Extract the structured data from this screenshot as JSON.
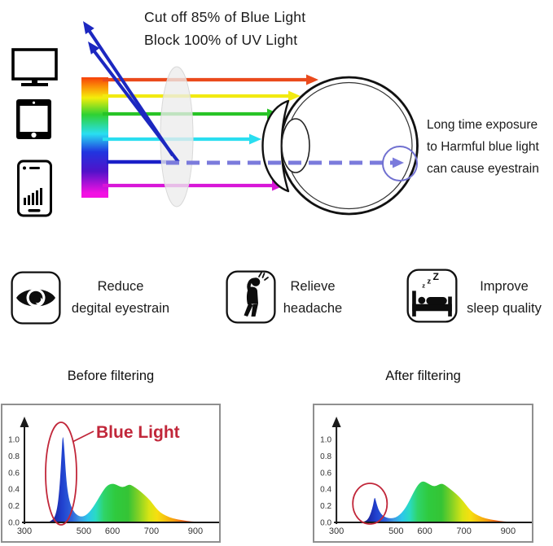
{
  "header": {
    "line1": "Cut off 85% of Blue Light",
    "line2": "Block 100% of UV Light"
  },
  "diagram": {
    "caption": [
      "Long time exposure",
      "to Harmful blue light",
      "can cause eyestrain"
    ],
    "spectrum_bar": [
      "#f64008",
      "#fb9307",
      "#f4ee0b",
      "#2fd133",
      "#29dff2",
      "#2135e0",
      "#5012c9",
      "#f211e2"
    ],
    "rays": {
      "red": "#ea4a1c",
      "yellow": "#f2ea10",
      "green": "#28c426",
      "cyan": "#2adef0",
      "blue": "#1a1fc8",
      "magenta": "#d816d8",
      "reflected_blue": "#1c27c0",
      "transmitted_dashed": "#7b7bdc"
    },
    "lens_fill": "#ececec",
    "retina_circle": "#7070d0",
    "devices": [
      "monitor",
      "tablet",
      "smartphone"
    ]
  },
  "benefits": [
    {
      "icon": "eye",
      "line1": "Reduce",
      "line2": "degital eyestrain"
    },
    {
      "icon": "headache",
      "line1": "Relieve",
      "line2": "headache"
    },
    {
      "icon": "sleep-bed",
      "line1": "Improve",
      "line2": "sleep quality",
      "zzz": [
        "z",
        "z",
        "Z"
      ]
    }
  ],
  "chart_data": [
    {
      "type": "area",
      "title": "Before filtering",
      "x_ticks": [
        300,
        500,
        600,
        700,
        900
      ],
      "y_ticks": [
        "0.0",
        "0.2",
        "0.4",
        "0.6",
        "0.8",
        "1.0"
      ],
      "ylim": [
        0,
        1.15
      ],
      "x_map": [
        [
          300,
          0
        ],
        [
          500,
          0.32
        ],
        [
          600,
          0.474
        ],
        [
          700,
          0.684
        ],
        [
          900,
          0.921
        ],
        [
          950,
          1.0
        ]
      ],
      "gradient": [
        [
          0,
          "#1b1566"
        ],
        [
          0.05,
          "#1c2cae"
        ],
        [
          0.09,
          "#2141cf"
        ],
        [
          0.15,
          "#2e62da"
        ],
        [
          0.2,
          "#3e9ae2"
        ],
        [
          0.25,
          "#2cc6ec"
        ],
        [
          0.3,
          "#2adbc2"
        ],
        [
          0.35,
          "#2fd468"
        ],
        [
          0.42,
          "#2fca3e"
        ],
        [
          0.5,
          "#35c435"
        ],
        [
          0.56,
          "#7ed026"
        ],
        [
          0.63,
          "#d8e414"
        ],
        [
          0.68,
          "#f6df10"
        ],
        [
          0.73,
          "#f6c20f"
        ],
        [
          0.78,
          "#f5a00e"
        ],
        [
          0.84,
          "#ee6414"
        ],
        [
          0.92,
          "#e63419"
        ],
        [
          1,
          "#e02315"
        ]
      ],
      "points": [
        [
          378,
          0
        ],
        [
          392,
          0.02
        ],
        [
          403,
          0.07
        ],
        [
          412,
          0.2
        ],
        [
          419,
          0.45
        ],
        [
          425,
          0.82
        ],
        [
          429,
          1.08
        ],
        [
          434,
          0.9
        ],
        [
          440,
          0.55
        ],
        [
          447,
          0.33
        ],
        [
          456,
          0.2
        ],
        [
          468,
          0.12
        ],
        [
          480,
          0.08
        ],
        [
          492,
          0.07
        ],
        [
          505,
          0.08
        ],
        [
          518,
          0.12
        ],
        [
          532,
          0.18
        ],
        [
          548,
          0.27
        ],
        [
          565,
          0.37
        ],
        [
          580,
          0.44
        ],
        [
          597,
          0.47
        ],
        [
          610,
          0.455
        ],
        [
          622,
          0.425
        ],
        [
          632,
          0.43
        ],
        [
          643,
          0.46
        ],
        [
          652,
          0.44
        ],
        [
          665,
          0.4
        ],
        [
          680,
          0.34
        ],
        [
          698,
          0.26
        ],
        [
          718,
          0.18
        ],
        [
          740,
          0.12
        ],
        [
          765,
          0.08
        ],
        [
          800,
          0.045
        ],
        [
          840,
          0.025
        ],
        [
          880,
          0.012
        ],
        [
          915,
          0.006
        ],
        [
          945,
          0.002
        ]
      ],
      "annotation": {
        "label": "Blue Light",
        "color": "#c1273a",
        "cx": 72,
        "cy": 84,
        "rx": 19,
        "ry": 63,
        "label_x": 115,
        "label_y": 40,
        "pointer": [
          86,
          45,
          112,
          32
        ]
      }
    },
    {
      "type": "area",
      "title": "After filtering",
      "x_ticks": [
        300,
        500,
        600,
        700,
        900
      ],
      "y_ticks": [
        "0.0",
        "0.2",
        "0.4",
        "0.6",
        "0.8",
        "1.0"
      ],
      "ylim": [
        0,
        1.15
      ],
      "x_map": [
        [
          300,
          0
        ],
        [
          500,
          0.32
        ],
        [
          600,
          0.474
        ],
        [
          700,
          0.684
        ],
        [
          900,
          0.921
        ],
        [
          950,
          1.0
        ]
      ],
      "gradient": [
        [
          0,
          "#1b1566"
        ],
        [
          0.05,
          "#1c2cae"
        ],
        [
          0.09,
          "#2141cf"
        ],
        [
          0.15,
          "#2e62da"
        ],
        [
          0.2,
          "#3e9ae2"
        ],
        [
          0.25,
          "#2cc6ec"
        ],
        [
          0.3,
          "#2adbc2"
        ],
        [
          0.35,
          "#2fd468"
        ],
        [
          0.42,
          "#2fca3e"
        ],
        [
          0.5,
          "#35c435"
        ],
        [
          0.56,
          "#7ed026"
        ],
        [
          0.63,
          "#d8e414"
        ],
        [
          0.68,
          "#f6df10"
        ],
        [
          0.73,
          "#f6c20f"
        ],
        [
          0.78,
          "#f5a00e"
        ],
        [
          0.84,
          "#ee6414"
        ],
        [
          0.92,
          "#e63419"
        ],
        [
          1,
          "#e02315"
        ]
      ],
      "points": [
        [
          385,
          0
        ],
        [
          398,
          0.015
        ],
        [
          408,
          0.05
        ],
        [
          416,
          0.12
        ],
        [
          423,
          0.21
        ],
        [
          428,
          0.315
        ],
        [
          433,
          0.25
        ],
        [
          440,
          0.16
        ],
        [
          450,
          0.1
        ],
        [
          462,
          0.065
        ],
        [
          476,
          0.05
        ],
        [
          490,
          0.05
        ],
        [
          505,
          0.07
        ],
        [
          518,
          0.11
        ],
        [
          532,
          0.17
        ],
        [
          548,
          0.27
        ],
        [
          565,
          0.39
        ],
        [
          580,
          0.47
        ],
        [
          594,
          0.5
        ],
        [
          608,
          0.47
        ],
        [
          620,
          0.435
        ],
        [
          630,
          0.44
        ],
        [
          641,
          0.47
        ],
        [
          650,
          0.455
        ],
        [
          663,
          0.41
        ],
        [
          680,
          0.345
        ],
        [
          698,
          0.26
        ],
        [
          718,
          0.18
        ],
        [
          740,
          0.12
        ],
        [
          765,
          0.08
        ],
        [
          800,
          0.045
        ],
        [
          840,
          0.025
        ],
        [
          880,
          0.012
        ],
        [
          915,
          0.006
        ],
        [
          945,
          0.002
        ]
      ],
      "annotation": {
        "label": "",
        "color": "#c1273a",
        "cx": 68,
        "cy": 121,
        "rx": 21,
        "ry": 25
      }
    }
  ]
}
